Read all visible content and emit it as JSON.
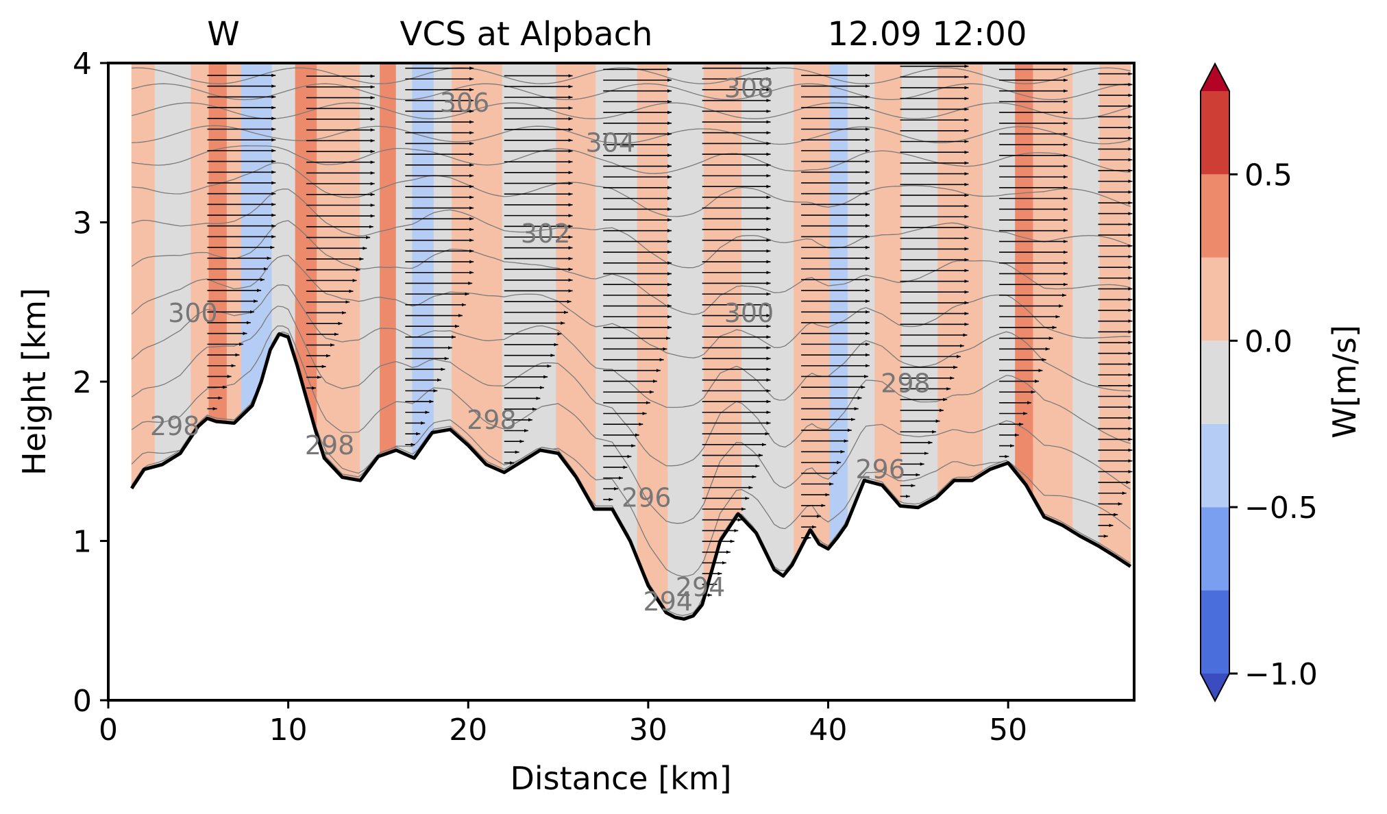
{
  "chart_data": {
    "type": "contour",
    "title_left": "W",
    "title_center": "VCS at Alpbach",
    "title_right": "12.09 12:00",
    "xlabel": "Distance [km]",
    "ylabel": "Height [km]",
    "xlim": [
      0,
      57
    ],
    "ylim": [
      0,
      4
    ],
    "xticks": [
      0,
      10,
      20,
      30,
      40,
      50
    ],
    "yticks": [
      0,
      1,
      2,
      3,
      4
    ],
    "colorbar": {
      "label": "W[m/s]",
      "levels": [
        -1.0,
        -0.75,
        -0.5,
        -0.25,
        0.0,
        0.25,
        0.5,
        0.75
      ],
      "colors": [
        "#4a6fdc",
        "#7b9ff0",
        "#b5cdf5",
        "#dcdcdc",
        "#f5c0a5",
        "#ee8a6c",
        "#cf3e34"
      ],
      "over_color": "#b40426",
      "under_color": "#3b4cc0",
      "ticks": [
        -1.0,
        -0.5,
        0.0,
        0.5
      ],
      "tick_labels": [
        "−1.0",
        "−0.5",
        "0.0",
        "0.5"
      ]
    },
    "terrain": {
      "x": [
        1.3,
        2,
        3,
        4,
        5,
        5.5,
        6,
        7,
        8,
        8.5,
        9,
        9.5,
        10,
        10.5,
        11,
        11.5,
        12,
        13,
        14,
        15,
        16,
        17,
        18,
        19,
        20,
        21,
        22,
        23,
        24,
        25,
        26,
        27,
        28,
        29,
        30,
        31,
        31.5,
        32,
        32.5,
        33,
        34,
        35,
        36,
        37,
        37.5,
        38,
        39,
        39.5,
        40,
        40.5,
        41,
        42,
        43,
        44,
        45,
        46,
        47,
        48,
        49,
        50,
        51,
        52,
        53,
        54,
        55,
        56,
        56.8
      ],
      "height": [
        1.33,
        1.45,
        1.48,
        1.55,
        1.72,
        1.77,
        1.75,
        1.74,
        1.85,
        2.0,
        2.2,
        2.3,
        2.28,
        2.1,
        1.9,
        1.7,
        1.52,
        1.4,
        1.38,
        1.53,
        1.57,
        1.52,
        1.68,
        1.7,
        1.6,
        1.48,
        1.43,
        1.5,
        1.57,
        1.55,
        1.4,
        1.2,
        1.2,
        1.0,
        0.72,
        0.55,
        0.52,
        0.51,
        0.53,
        0.6,
        1.0,
        1.17,
        1.05,
        0.82,
        0.78,
        0.85,
        1.07,
        0.98,
        0.95,
        1.02,
        1.1,
        1.38,
        1.35,
        1.22,
        1.21,
        1.27,
        1.38,
        1.38,
        1.45,
        1.49,
        1.35,
        1.15,
        1.1,
        1.03,
        0.97,
        0.9,
        0.84
      ]
    },
    "w_field": [
      {
        "x0": 1.3,
        "x1": 2.6,
        "value": 0.1
      },
      {
        "x0": 2.6,
        "x1": 4.6,
        "value": -0.1
      },
      {
        "x0": 4.6,
        "x1": 5.6,
        "value": 0.1
      },
      {
        "x0": 5.6,
        "x1": 6.6,
        "value": 0.4
      },
      {
        "x0": 6.6,
        "x1": 7.4,
        "value": 0.1
      },
      {
        "x0": 7.4,
        "x1": 9.1,
        "value": -0.4
      },
      {
        "x0": 9.1,
        "x1": 10.4,
        "value": -0.1
      },
      {
        "x0": 10.4,
        "x1": 11.6,
        "value": 0.35
      },
      {
        "x0": 11.6,
        "x1": 14.0,
        "value": 0.1
      },
      {
        "x0": 14.0,
        "x1": 15.1,
        "value": -0.1
      },
      {
        "x0": 15.1,
        "x1": 16.0,
        "value": 0.35
      },
      {
        "x0": 16.0,
        "x1": 16.9,
        "value": -0.1
      },
      {
        "x0": 16.9,
        "x1": 18.1,
        "value": -0.4
      },
      {
        "x0": 18.1,
        "x1": 19.1,
        "value": -0.1
      },
      {
        "x0": 19.1,
        "x1": 21.9,
        "value": 0.1
      },
      {
        "x0": 21.9,
        "x1": 24.9,
        "value": -0.1
      },
      {
        "x0": 24.9,
        "x1": 27.1,
        "value": 0.1
      },
      {
        "x0": 27.1,
        "x1": 29.4,
        "value": -0.1
      },
      {
        "x0": 29.4,
        "x1": 31.1,
        "value": 0.1
      },
      {
        "x0": 31.1,
        "x1": 33.1,
        "value": -0.1
      },
      {
        "x0": 33.1,
        "x1": 35.2,
        "value": 0.1
      },
      {
        "x0": 35.2,
        "x1": 38.1,
        "value": -0.1
      },
      {
        "x0": 38.1,
        "x1": 40.1,
        "value": 0.1
      },
      {
        "x0": 40.1,
        "x1": 41.1,
        "value": -0.4
      },
      {
        "x0": 41.1,
        "x1": 42.6,
        "value": -0.1
      },
      {
        "x0": 42.6,
        "x1": 44.1,
        "value": 0.1
      },
      {
        "x0": 44.1,
        "x1": 46.1,
        "value": -0.1
      },
      {
        "x0": 46.1,
        "x1": 48.6,
        "value": 0.1
      },
      {
        "x0": 48.6,
        "x1": 50.4,
        "value": -0.1
      },
      {
        "x0": 50.4,
        "x1": 51.4,
        "value": 0.4
      },
      {
        "x0": 51.4,
        "x1": 53.6,
        "value": 0.1
      },
      {
        "x0": 53.6,
        "x1": 55.1,
        "value": -0.1
      },
      {
        "x0": 55.1,
        "x1": 56.8,
        "value": 0.1
      }
    ],
    "theta_labels": [
      {
        "text": "300",
        "x": 4.7,
        "y": 2.43
      },
      {
        "text": "298",
        "x": 3.7,
        "y": 1.72
      },
      {
        "text": "298",
        "x": 12.3,
        "y": 1.6
      },
      {
        "text": "306",
        "x": 19.8,
        "y": 3.75
      },
      {
        "text": "304",
        "x": 27.9,
        "y": 3.5
      },
      {
        "text": "302",
        "x": 24.3,
        "y": 2.93
      },
      {
        "text": "298",
        "x": 21.3,
        "y": 1.76
      },
      {
        "text": "296",
        "x": 29.9,
        "y": 1.27
      },
      {
        "text": "294",
        "x": 31.1,
        "y": 0.62
      },
      {
        "text": "294",
        "x": 32.9,
        "y": 0.71
      },
      {
        "text": "308",
        "x": 35.6,
        "y": 3.84
      },
      {
        "text": "300",
        "x": 35.6,
        "y": 2.43
      },
      {
        "text": "298",
        "x": 44.3,
        "y": 1.99
      },
      {
        "text": "296",
        "x": 42.9,
        "y": 1.45
      }
    ],
    "wind_vectors": {
      "x_columns": [
        5.5,
        11,
        16.5,
        22,
        27.5,
        33,
        38.5,
        44,
        49.5,
        55
      ],
      "max_speed_length_km": 3.8,
      "note": "westerly wind, horizontal vectors from terrain to model top"
    }
  }
}
